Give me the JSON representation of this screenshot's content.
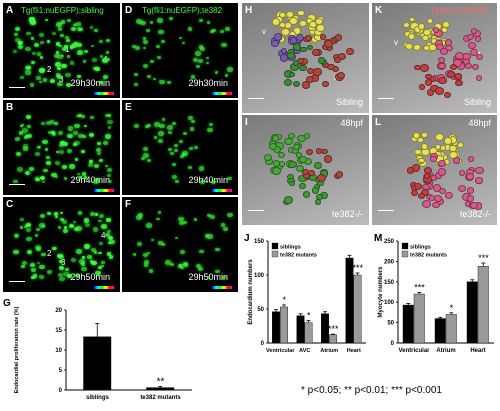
{
  "panels": {
    "A": {
      "letter": "A",
      "title": "Tg(fli1:nuEGFP);sibling",
      "time": "29h30min",
      "markers": [
        "1",
        "2",
        "3",
        "4"
      ]
    },
    "B": {
      "letter": "B",
      "time": "29h40min"
    },
    "C": {
      "letter": "C",
      "time": "29h50min",
      "markers": [
        "2",
        "3",
        "4"
      ]
    },
    "D": {
      "letter": "D",
      "title": "Tg(fli1:nuEGFP);te382",
      "time": "29h30min"
    },
    "E": {
      "letter": "E",
      "time": "29h40min"
    },
    "F": {
      "letter": "F",
      "time": "29h50min"
    },
    "H": {
      "letter": "H",
      "v": "v",
      "avc": "avc",
      "a": "a",
      "genotype": "Sibling"
    },
    "I": {
      "letter": "I",
      "stage": "48hpf",
      "genotype": "te382-/-"
    },
    "K": {
      "letter": "K",
      "title": "Tg(myl7:dsRed)",
      "v": "v",
      "a": "a",
      "genotype": "Sibling"
    },
    "L": {
      "letter": "L",
      "stage": "48hpf",
      "genotype": "te382-/-"
    },
    "G": {
      "letter": "G"
    },
    "J": {
      "letter": "J"
    },
    "M": {
      "letter": "M"
    }
  },
  "colors": {
    "sibling": "#000000",
    "mutant": "#9a9a9a",
    "nuclei_green": "#3cff3c",
    "label_red": "#ff6a6a"
  },
  "footnote": "* p<0.05; ** p<0.01; *** p<0.001",
  "chart_data": [
    {
      "id": "G",
      "type": "bar",
      "ylabel": "Endocardial proliferation rate (%)",
      "categories": [
        "siblings",
        "te382 mutants"
      ],
      "values": [
        13.3,
        0.6
      ],
      "errors": [
        3.3,
        0.3
      ],
      "ylim": [
        0,
        20
      ],
      "yticks": [
        0,
        5,
        10,
        15,
        20
      ],
      "significance": [
        "",
        "**"
      ]
    },
    {
      "id": "J",
      "type": "bar",
      "ylabel": "Endocardium numbers",
      "categories": [
        "Ventricular",
        "AVC",
        "Atrium",
        "Heart"
      ],
      "series": [
        {
          "name": "siblings",
          "values": [
            46,
            40,
            43,
            125
          ],
          "errors": [
            3,
            3,
            3,
            4
          ]
        },
        {
          "name": "te382 mutants",
          "values": [
            53,
            30,
            12,
            100
          ],
          "errors": [
            3,
            3,
            1,
            3
          ]
        }
      ],
      "significance": [
        "*",
        "*",
        "***",
        "***"
      ],
      "ylim": [
        0,
        150
      ],
      "yticks": [
        0,
        50,
        100,
        150
      ],
      "legend": "top-left"
    },
    {
      "id": "M",
      "type": "bar",
      "ylabel": "Myocyte numbers",
      "categories": [
        "Ventricular",
        "Atrium",
        "Heart"
      ],
      "series": [
        {
          "name": "siblings",
          "values": [
            93,
            60,
            150
          ],
          "errors": [
            4,
            3,
            5
          ]
        },
        {
          "name": "te382 mutants",
          "values": [
            120,
            70,
            188
          ],
          "errors": [
            4,
            4,
            8
          ]
        }
      ],
      "significance": [
        "***",
        "*",
        "***"
      ],
      "ylim": [
        0,
        250
      ],
      "yticks": [
        0,
        50,
        100,
        150,
        200,
        250
      ],
      "legend": "top-left"
    }
  ]
}
